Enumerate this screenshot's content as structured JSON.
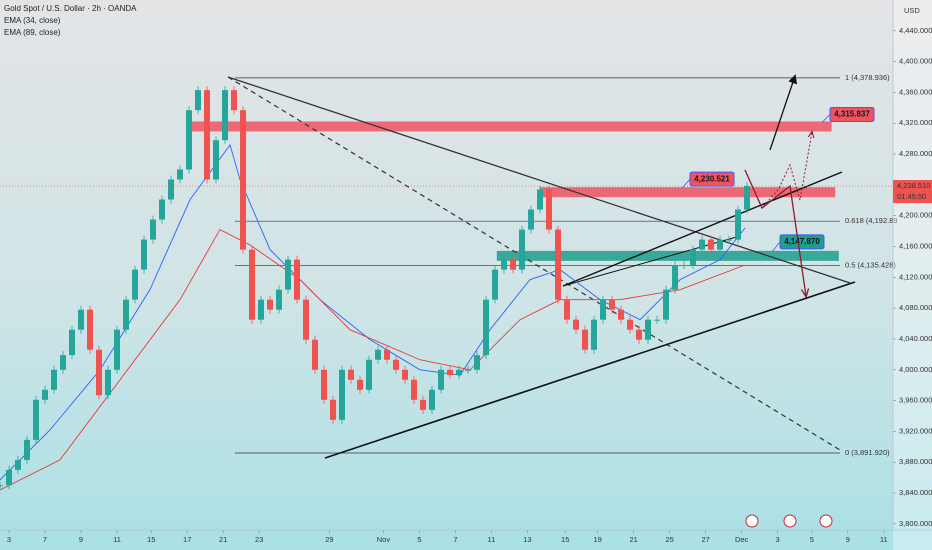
{
  "chart_data": {
    "type": "candlestick",
    "title": "Gold Spot / U.S. Dollar · 2h · OANDA",
    "currency": "USD",
    "x": [
      -0.5,
      0,
      0.5,
      1,
      1.5,
      2,
      2.5,
      3,
      3.5,
      4,
      4.5,
      5,
      5.5,
      6,
      6.5,
      7,
      7.5,
      8,
      8.5,
      9,
      9.5,
      10,
      10.5,
      11,
      11.5,
      12,
      12.5,
      13,
      13.5,
      14,
      14.5,
      15,
      15.5,
      16,
      16.5,
      17,
      17.5,
      18,
      18.5,
      19,
      19.5,
      20,
      20.5,
      21,
      21.5,
      22,
      22.5,
      23,
      23.5,
      24,
      24.5,
      25,
      25.5,
      26,
      26.5,
      27,
      27.5,
      28,
      28.5,
      29,
      29.5,
      30,
      30.5,
      31,
      31.5,
      32,
      32.5,
      33,
      33.5,
      34,
      34.5,
      35,
      35.5,
      36,
      36.5,
      37,
      37.5,
      38,
      38.5,
      39,
      39.5,
      40,
      40.5,
      41
    ],
    "close": [
      3850,
      3870,
      3883,
      3909,
      3961,
      3974,
      4000,
      4019,
      4052,
      4078,
      4026,
      3967,
      4000,
      4052,
      4091,
      4130,
      4169,
      4195,
      4221,
      4247,
      4260,
      4337,
      4363,
      4247,
      4298,
      4363,
      4337,
      4156,
      4065,
      4091,
      4078,
      4104,
      4143,
      4091,
      4039,
      4000,
      3961,
      3935,
      4000,
      3987,
      3974,
      4013,
      4026,
      4013,
      4000,
      3987,
      3961,
      3948,
      3974,
      4000,
      3993,
      4000,
      4000,
      4019,
      4091,
      4130,
      4143,
      4130,
      4182,
      4208,
      4234,
      4182,
      4091,
      4065,
      4052,
      4026,
      4065,
      4091,
      4078,
      4065,
      4052,
      4039,
      4065,
      4065,
      4104,
      4136,
      4136,
      4156,
      4169,
      4156,
      4169,
      4169,
      4208,
      4238.51
    ],
    "up_color": "#26a69a",
    "down_color": "#ef5350",
    "indicators": [
      {
        "name": "EMA (34, close)",
        "color": "#2962ff",
        "x": [
          -0.5,
          2.28,
          5.06,
          7.83,
          10.06,
          12.28,
          12.83,
          14.5,
          17.28,
          20.06,
          22.83,
          25.06,
          26.72,
          28.94,
          30.61,
          32.83,
          35.06,
          37.28,
          39.5,
          40.89
        ],
        "values": [
          3857,
          3922,
          4000,
          4104,
          4221,
          4292,
          4247,
          4156,
          4091,
          4039,
          4000,
          3993,
          4052,
          4117,
          4130,
          4091,
          4065,
          4117,
          4143,
          4184
        ]
      },
      {
        "name": "EMA (89, close)",
        "color": "#e53935",
        "x": [
          -0.5,
          2.83,
          6.17,
          9.5,
          11.72,
          13.39,
          16.17,
          18.94,
          22.83,
          25.61,
          28.39,
          30.61,
          33.94,
          37.28,
          40.89
        ],
        "values": [
          3844,
          3883,
          3987,
          4091,
          4182,
          4162,
          4117,
          4052,
          4013,
          4000,
          4065,
          4091,
          4091,
          4104,
          4136
        ]
      }
    ],
    "levels": [
      {
        "value": 4378.936,
        "label": "1 (4,378.936)"
      },
      {
        "value": 4192.89,
        "label": "0.618 (4,192.89"
      },
      {
        "value": 4135.428,
        "label": "0.5 (4,135.428)"
      },
      {
        "value": 3891.92,
        "label": "0 (3,891.920)"
      }
    ],
    "zones": [
      {
        "value": 4315.837,
        "label": "4,315.837",
        "color": "#ef5360",
        "x": [
          10.1,
          45.7
        ]
      },
      {
        "value": 4230.521,
        "label": "4,230.521",
        "color": "#ef5360",
        "x": [
          29.5,
          45.9
        ]
      },
      {
        "value": 4147.87,
        "label": "4,147.870",
        "color": "#1f9e8c",
        "x": [
          27.1,
          46.1
        ]
      }
    ],
    "last_price": {
      "value": 4238.51,
      "label": "4,238.510",
      "countdown": "01:45:50"
    },
    "xlim": [
      -0.5,
      49.11
    ],
    "ylim": [
      3792,
      4480
    ],
    "xticks": [
      {
        "value": 0,
        "label": "3"
      },
      {
        "value": 2,
        "label": "7"
      },
      {
        "value": 4,
        "label": "9"
      },
      {
        "value": 6,
        "label": "11"
      },
      {
        "value": 7.9,
        "label": "15"
      },
      {
        "value": 9.9,
        "label": "17"
      },
      {
        "value": 11.9,
        "label": "21"
      },
      {
        "value": 13.9,
        "label": "23"
      },
      {
        "value": 17.8,
        "label": "29"
      },
      {
        "value": 20.8,
        "label": "Nov"
      },
      {
        "value": 22.8,
        "label": "5"
      },
      {
        "value": 24.8,
        "label": "7"
      },
      {
        "value": 26.8,
        "label": "11"
      },
      {
        "value": 28.8,
        "label": "13"
      },
      {
        "value": 30.9,
        "label": "15"
      },
      {
        "value": 32.7,
        "label": "19"
      },
      {
        "value": 34.7,
        "label": "21"
      },
      {
        "value": 36.7,
        "label": "25"
      },
      {
        "value": 38.7,
        "label": "27"
      },
      {
        "value": 40.7,
        "label": "Dec"
      },
      {
        "value": 42.7,
        "label": "3"
      },
      {
        "value": 44.6,
        "label": "5"
      },
      {
        "value": 46.6,
        "label": "9"
      },
      {
        "value": 48.6,
        "label": "11"
      }
    ],
    "yticks": [
      {
        "value": 3800,
        "label": "3,800.000"
      },
      {
        "value": 3840,
        "label": "3,840.000"
      },
      {
        "value": 3880,
        "label": "3,880.000"
      },
      {
        "value": 3920,
        "label": "3,920.000"
      },
      {
        "value": 3960,
        "label": "3,960.000"
      },
      {
        "value": 4000,
        "label": "4,000.000"
      },
      {
        "value": 4040,
        "label": "4,040.000"
      },
      {
        "value": 4080,
        "label": "4,080.000"
      },
      {
        "value": 4120,
        "label": "4,120.000"
      },
      {
        "value": 4160,
        "label": "4,160.000"
      },
      {
        "value": 4200,
        "label": "4,200.000"
      },
      {
        "value": 4240,
        "label": "4,240.000"
      },
      {
        "value": 4280,
        "label": "4,280.000"
      },
      {
        "value": 4320,
        "label": "4,320.000"
      },
      {
        "value": 4360,
        "label": "4,360.000"
      },
      {
        "value": 4400,
        "label": "4,400.000"
      },
      {
        "value": 4440,
        "label": "4,440.000"
      }
    ]
  }
}
